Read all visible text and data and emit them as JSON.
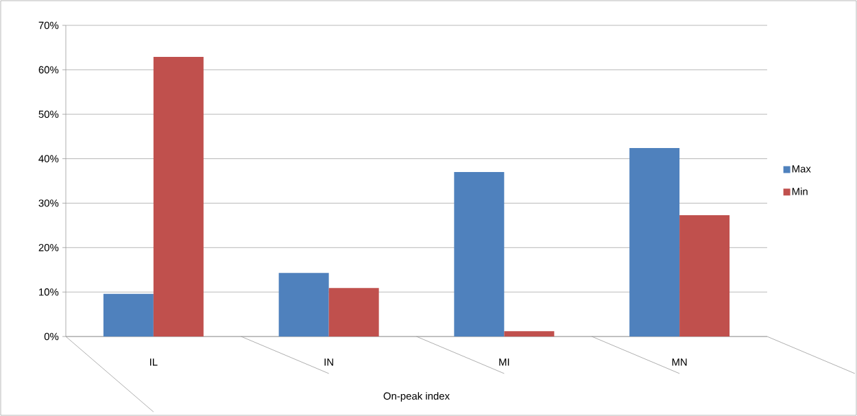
{
  "chart_data": {
    "type": "bar",
    "xlabel": "On-peak index",
    "categories": [
      "IL",
      "IN",
      "MI",
      "MN"
    ],
    "series": [
      {
        "name": "Max",
        "color": "#4f81bd",
        "values": [
          9.6,
          14.3,
          37.0,
          42.4
        ]
      },
      {
        "name": "Min",
        "color": "#c0504d",
        "values": [
          62.9,
          10.9,
          1.2,
          27.3
        ]
      }
    ],
    "ylim": [
      0,
      70
    ],
    "yticks": [
      {
        "value": 0,
        "label": "0%"
      },
      {
        "value": 10,
        "label": "10%"
      },
      {
        "value": 20,
        "label": "20%"
      },
      {
        "value": 30,
        "label": "30%"
      },
      {
        "value": 40,
        "label": "40%"
      },
      {
        "value": 50,
        "label": "50%"
      },
      {
        "value": 60,
        "label": "60%"
      },
      {
        "value": 70,
        "label": "70%"
      }
    ],
    "grid": "y",
    "legend": "right"
  }
}
